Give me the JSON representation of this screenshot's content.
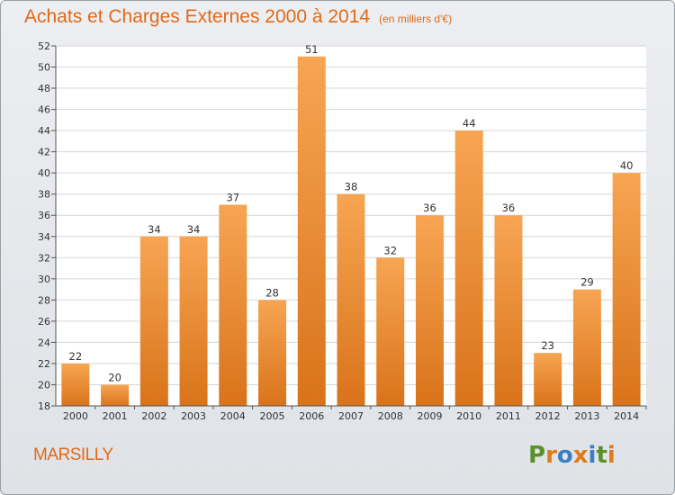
{
  "header": {
    "title": "Achats et Charges Externes 2000 à 2014",
    "subtitle": "(en milliers d'€)"
  },
  "footer": {
    "commune": "MARSILLY",
    "logo": "Proxiti"
  },
  "colors": {
    "accent": "#e06a1a",
    "bar_top": "#f7a553",
    "bar_bottom": "#d9731a",
    "logo_letters": [
      "#5a8f2a",
      "#e07b1a",
      "#3a7fc2",
      "#e07b1a",
      "#3a7fc2",
      "#5a8f2a",
      "#e07b1a"
    ]
  },
  "chart_data": {
    "type": "bar",
    "categories": [
      "2000",
      "2001",
      "2002",
      "2003",
      "2004",
      "2005",
      "2006",
      "2007",
      "2008",
      "2009",
      "2010",
      "2011",
      "2012",
      "2013",
      "2014"
    ],
    "values": [
      22,
      20,
      34,
      34,
      37,
      28,
      51,
      38,
      32,
      36,
      44,
      36,
      23,
      29,
      40
    ],
    "ylim": [
      18,
      52
    ],
    "yticks": [
      18,
      20,
      22,
      24,
      26,
      28,
      30,
      32,
      34,
      36,
      38,
      40,
      42,
      44,
      46,
      48,
      50,
      52
    ],
    "grid": true,
    "data_labels": true
  }
}
